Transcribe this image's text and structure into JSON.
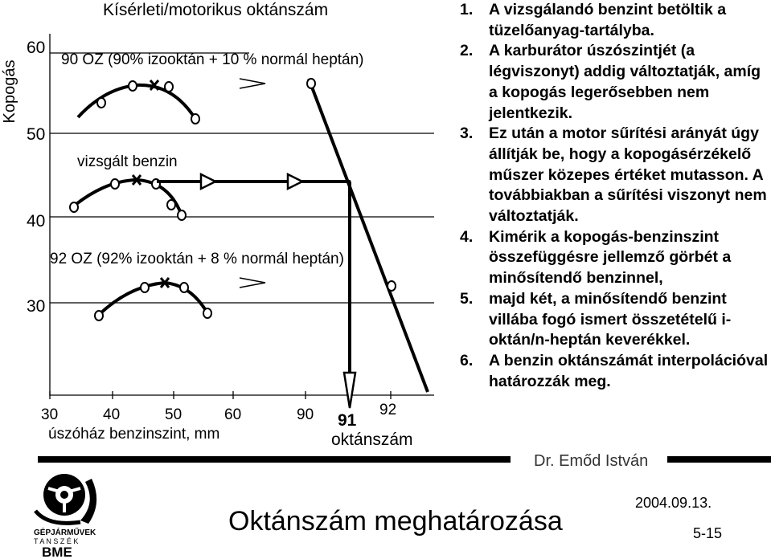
{
  "diagram": {
    "header_title": "Kísérleti/motorikus oktánszám",
    "y_axis_label": "Kopogás",
    "y_ticks": [
      "60",
      "50",
      "40",
      "30"
    ],
    "x_left_ticks": [
      "30",
      "40",
      "50",
      "60"
    ],
    "x_left_label": "úszóház benzinszint, mm",
    "x_right_ticks": [
      "90",
      "91",
      "92"
    ],
    "x_right_label": "oktánszám",
    "curve_90_label": "90 OZ (90% izooktán + 10 % normál heptán)",
    "curve_test_label": "vizsgált benzin",
    "curve_92_label": "92 OZ (92% izooktán + 8 % normál heptán)"
  },
  "steps": [
    {
      "num": "1.",
      "text": "A vizsgálandó benzint betöltik a tüzelőanyag-tartályba."
    },
    {
      "num": "2.",
      "text": "A karburátor úszószintjét (a légviszonyt) addig változtatják, amíg a kopogás legerősebben nem jelentkezik."
    },
    {
      "num": "3.",
      "text": "Ez után a motor sűrítési arányát úgy állítják be, hogy a kopogásérzékelő műszer közepes értéket mutasson. A továbbiakban a sűrítési viszonyt nem változtatják."
    },
    {
      "num": "4.",
      "text": "Kimérik a kopogás-benzinszint összefüggésre jellemző görbét a minősítendő benzinnel,"
    },
    {
      "num": "5.",
      "text": "majd két, a minősítendő benzint villába fogó ismert összetételű i-oktán/n-heptán keverékkel."
    },
    {
      "num": "6.",
      "text": "A benzin oktánszámát interpolációval határozzák meg."
    }
  ],
  "footer": {
    "author": "Dr. Emőd István",
    "date": "2004.09.13.",
    "title": "Oktánszám meghatározása",
    "page": "5-15",
    "logo_text_1": "GÉPJÁRMŰVEK",
    "logo_text_2": "T A N S Z É K",
    "logo_text_3": "BME"
  }
}
